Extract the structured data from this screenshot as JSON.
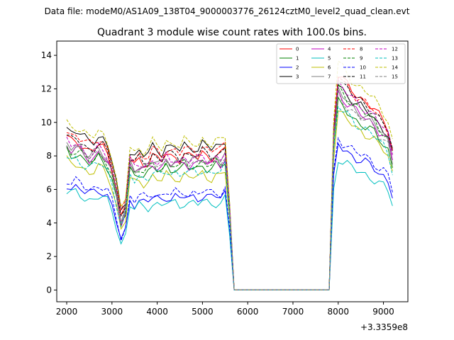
{
  "chart_data": {
    "type": "line",
    "suptitle": "Data file: modeM0/AS1A09_138T04_9000003776_26124cztM0_level2_quad_clean.evt",
    "title": "Quadrant 3 module wise count rates with 100.0s bins.",
    "xlabel": "",
    "ylabel": "",
    "x_offset_label": "+3.3359e8",
    "xlim": [
      1780,
      9540
    ],
    "ylim": [
      -0.7,
      14.85
    ],
    "xticks": [
      2000,
      3000,
      4000,
      5000,
      6000,
      7000,
      8000,
      9000
    ],
    "yticks": [
      0,
      2,
      4,
      6,
      8,
      10,
      12,
      14
    ],
    "grid": false,
    "legend": {
      "placement": "top-right",
      "columns": 4
    },
    "profile": {
      "x": [
        2000,
        2100,
        2200,
        2300,
        2400,
        2500,
        2600,
        2700,
        2800,
        2900,
        3000,
        3100,
        3200,
        3300,
        3400,
        3500,
        3600,
        3700,
        3800,
        3900,
        4000,
        4100,
        4200,
        4300,
        4400,
        4500,
        4600,
        4700,
        4800,
        4900,
        5000,
        5100,
        5200,
        5300,
        5400,
        5500,
        5600,
        5700,
        7800,
        7900,
        8000,
        8100,
        8200,
        8300,
        8400,
        8500,
        8600,
        8700,
        8800,
        8900,
        9000,
        9100,
        9200
      ],
      "y": [
        1.0,
        0.97,
        0.98,
        0.96,
        0.93,
        0.91,
        0.92,
        0.95,
        0.93,
        0.89,
        0.8,
        0.65,
        0.47,
        0.55,
        0.86,
        0.82,
        0.85,
        0.83,
        0.84,
        0.88,
        0.86,
        0.85,
        0.89,
        0.87,
        0.88,
        0.86,
        0.89,
        0.87,
        0.88,
        0.87,
        0.9,
        0.88,
        0.87,
        0.89,
        0.88,
        0.92,
        0.55,
        0.0,
        0.0,
        1.0,
        1.32,
        1.28,
        1.25,
        1.22,
        1.19,
        1.17,
        1.15,
        1.13,
        1.1,
        1.06,
        1.03,
        0.99,
        0.86
      ]
    },
    "series": [
      {
        "name": "0",
        "color": "#ff0000",
        "dash": false,
        "level": 9.1,
        "peak": 12.9
      },
      {
        "name": "1",
        "color": "#008000",
        "dash": false,
        "level": 8.3,
        "peak": 11.2
      },
      {
        "name": "2",
        "color": "#0000ff",
        "dash": false,
        "level": 6.3,
        "peak": 8.7
      },
      {
        "name": "3",
        "color": "#000000",
        "dash": false,
        "level": 9.7,
        "peak": 12.3
      },
      {
        "name": "4",
        "color": "#c000c0",
        "dash": false,
        "level": 8.6,
        "peak": 11.8
      },
      {
        "name": "5",
        "color": "#00bfbf",
        "dash": false,
        "level": 5.9,
        "peak": 7.9
      },
      {
        "name": "6",
        "color": "#bfbf00",
        "dash": false,
        "level": 7.7,
        "peak": 10.7
      },
      {
        "name": "7",
        "color": "#808080",
        "dash": false,
        "level": 8.8,
        "peak": 11.9
      },
      {
        "name": "8",
        "color": "#ff0000",
        "dash": true,
        "level": 9.5,
        "peak": 12.8
      },
      {
        "name": "9",
        "color": "#008000",
        "dash": true,
        "level": 8.5,
        "peak": 12.1
      },
      {
        "name": "10",
        "color": "#0000ff",
        "dash": true,
        "level": 6.6,
        "peak": 9.1
      },
      {
        "name": "11",
        "color": "#000000",
        "dash": true,
        "level": 9.2,
        "peak": 12.7
      },
      {
        "name": "12",
        "color": "#c000c0",
        "dash": true,
        "level": 8.9,
        "peak": 12.4
      },
      {
        "name": "13",
        "color": "#00bfbf",
        "dash": true,
        "level": 8.0,
        "peak": 11.0
      },
      {
        "name": "14",
        "color": "#bfbf00",
        "dash": true,
        "level": 10.0,
        "peak": 13.6
      },
      {
        "name": "15",
        "color": "#808080",
        "dash": true,
        "level": 8.7,
        "peak": 11.6
      }
    ]
  }
}
